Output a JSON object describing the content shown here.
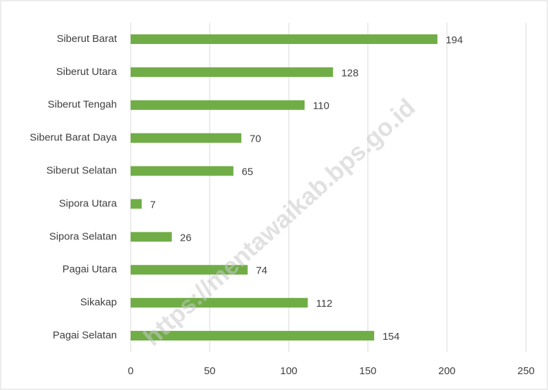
{
  "chart_data": {
    "type": "bar",
    "orientation": "horizontal",
    "categories": [
      "Siberut Barat",
      "Siberut Utara",
      "Siberut Tengah",
      "Siberut Barat Daya",
      "Siberut Selatan",
      "Sipora Utara",
      "Sipora Selatan",
      "Pagai Utara",
      "Sikakap",
      "Pagai Selatan"
    ],
    "values": [
      194,
      128,
      110,
      70,
      65,
      7,
      26,
      74,
      112,
      154
    ],
    "color": "#70ad47",
    "xlim": [
      0,
      250
    ],
    "xticks": [
      0,
      50,
      100,
      150,
      200,
      250
    ],
    "grid": true,
    "watermark": "https://mentawaikab.bps.go.id"
  }
}
